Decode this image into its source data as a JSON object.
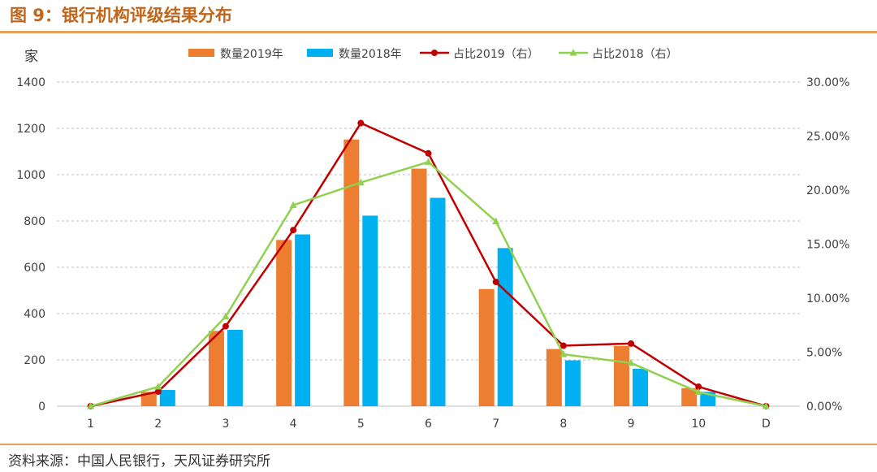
{
  "figure_title": "图 9：银行机构评级结果分布",
  "source": "资料来源：中国人民银行，天风证券研究所",
  "chart_data": {
    "type": "bar",
    "categories": [
      "1",
      "2",
      "3",
      "4",
      "5",
      "6",
      "7",
      "8",
      "9",
      "10",
      "D"
    ],
    "ylabel": "家",
    "ylim": [
      0,
      1400
    ],
    "y_ticks": [
      "0",
      "200",
      "400",
      "600",
      "800",
      "1000",
      "1200",
      "1400"
    ],
    "y2lim": [
      0,
      30
    ],
    "y2_ticks": [
      "0.00%",
      "5.00%",
      "10.00%",
      "15.00%",
      "20.00%",
      "25.00%",
      "30.00%"
    ],
    "grid": true,
    "legend_position": "top",
    "series": [
      {
        "name": "数量2019年",
        "kind": "bar",
        "axis": "left",
        "color": "#ed7d31",
        "values": [
          0,
          62,
          325,
          718,
          1152,
          1026,
          506,
          247,
          260,
          78,
          0
        ]
      },
      {
        "name": "数量2018年",
        "kind": "bar",
        "axis": "left",
        "color": "#00b0f0",
        "values": [
          0,
          70,
          330,
          742,
          823,
          900,
          683,
          198,
          162,
          62,
          0
        ]
      },
      {
        "name": "占比2019（右）",
        "kind": "line",
        "axis": "right",
        "color": "#c00000",
        "marker": "circle",
        "values": [
          0.0,
          1.35,
          7.4,
          16.3,
          26.2,
          23.4,
          11.5,
          5.6,
          5.8,
          1.8,
          0.0
        ]
      },
      {
        "name": "占比2018（右）",
        "kind": "line",
        "axis": "right",
        "color": "#92d050",
        "marker": "triangle",
        "values": [
          0.0,
          1.8,
          8.3,
          18.6,
          20.7,
          22.6,
          17.1,
          4.8,
          4.0,
          1.3,
          0.0
        ]
      }
    ]
  }
}
